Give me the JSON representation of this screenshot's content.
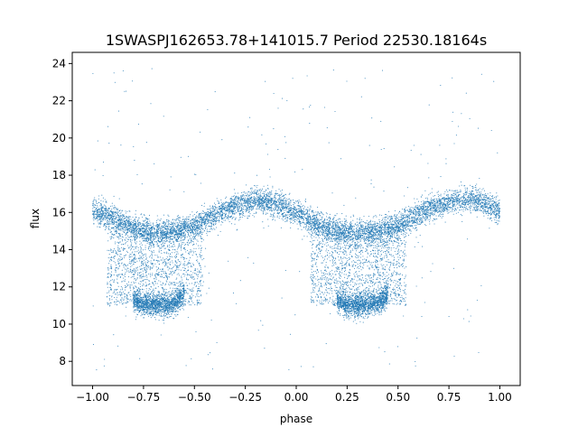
{
  "chart_data": {
    "type": "scatter",
    "title": "1SWASPJ162653.78+141015.7 Period 22530.18164s",
    "xlabel": "phase",
    "ylabel": "flux",
    "xlim": [
      -1.1,
      1.1
    ],
    "ylim": [
      6.7,
      24.6
    ],
    "xticks": [
      -1.0,
      -0.75,
      -0.5,
      -0.25,
      0.0,
      0.25,
      0.5,
      0.75,
      1.0
    ],
    "xtick_labels": [
      "−1.00",
      "−0.75",
      "−0.50",
      "−0.25",
      "0.00",
      "0.25",
      "0.50",
      "0.75",
      "1.00"
    ],
    "yticks": [
      8,
      10,
      12,
      14,
      16,
      18,
      20,
      22,
      24
    ],
    "ytick_labels": [
      "8",
      "10",
      "12",
      "14",
      "16",
      "18",
      "20",
      "22",
      "24"
    ],
    "grid": false,
    "legend": "none",
    "marker_color": "#1f77b4",
    "series": [
      {
        "x_range": [
          -1.0,
          1.0
        ],
        "upper_branch": {
          "x": [
            -1.0,
            -0.9,
            -0.8,
            -0.7,
            -0.6,
            -0.5,
            -0.4,
            -0.3,
            -0.2,
            -0.1,
            0.0,
            0.1,
            0.2,
            0.3,
            0.4,
            0.5,
            0.6,
            0.7,
            0.8,
            0.9,
            1.0
          ],
          "y": [
            16.1,
            15.7,
            15.2,
            14.9,
            15.0,
            15.3,
            15.9,
            16.4,
            16.6,
            16.5,
            16.0,
            15.4,
            15.0,
            14.9,
            15.0,
            15.3,
            15.9,
            16.4,
            16.7,
            16.6,
            16.1
          ]
        },
        "lower_branch": {
          "x": [
            -0.8,
            -0.75,
            -0.7,
            -0.65,
            -0.6,
            -0.55,
            0.2,
            0.25,
            0.3,
            0.35,
            0.4,
            0.45
          ],
          "y": [
            11.3,
            11.0,
            11.0,
            11.0,
            11.1,
            11.6,
            11.3,
            11.0,
            11.0,
            11.0,
            11.1,
            11.6
          ]
        },
        "outlier_range": [
          7.5,
          23.8
        ]
      }
    ]
  }
}
